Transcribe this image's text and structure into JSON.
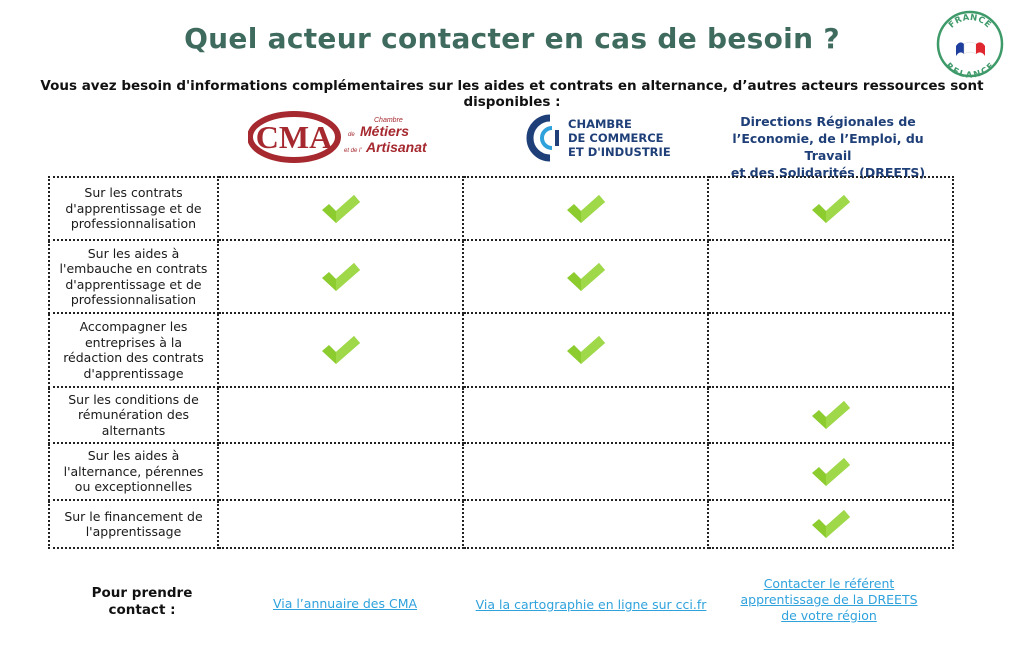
{
  "header": {
    "title": "Quel acteur contacter en cas de besoin ?",
    "subtitle": "Vous avez besoin d'informations complémentaires sur les aides et contrats en alternance, d’autres acteurs ressources sont disponibles :"
  },
  "seal": {
    "line1": "FRANCE",
    "line2": "RELANCE"
  },
  "logos": {
    "cma": {
      "mark": "CMA",
      "small1": "Chambre",
      "small2": "de",
      "word1": "Métiers",
      "small3": "et de l'",
      "word2": "Artisanat"
    },
    "cci": {
      "line1": "CHAMBRE",
      "line2": "DE COMMERCE",
      "line3": "ET D'INDUSTRIE"
    },
    "dreets": {
      "line1": "Directions Régionales de",
      "line2": "l’Economie, de l’Emploi, du Travail",
      "line3": "et des Solidarités (DREETS)"
    }
  },
  "colors": {
    "title": "#3f6b5e",
    "check": "#8ccc2f",
    "link": "#2fa2dc",
    "cma": "#a5292f",
    "cci": "#1f3f78"
  },
  "table": {
    "rows": [
      {
        "label": "Sur les contrats d'apprentissage et de professionnalisation",
        "checks": [
          true,
          true,
          true
        ]
      },
      {
        "label": "Sur les aides à l'embauche en contrats d'apprentissage et de professionnalisation",
        "checks": [
          true,
          true,
          false
        ]
      },
      {
        "label": "Accompagner les entreprises à la rédaction des contrats d'apprentissage",
        "checks": [
          true,
          true,
          false
        ]
      },
      {
        "label": "Sur les conditions de rémunération des alternants",
        "checks": [
          false,
          false,
          true
        ]
      },
      {
        "label": "Sur les aides à l'alternance, pérennes ou exceptionnelles",
        "checks": [
          false,
          false,
          true
        ]
      },
      {
        "label": "Sur le financement de l'apprentissage",
        "checks": [
          false,
          false,
          true
        ]
      }
    ],
    "icon": "check-mark-icon"
  },
  "footer": {
    "contact_label": "Pour prendre contact :",
    "link_cma": "Via l’annuaire des CMA",
    "link_cci": "Via la cartographie en ligne sur cci.fr",
    "link_dreets": "Contacter le référent apprentissage de la DREETS de votre région"
  }
}
